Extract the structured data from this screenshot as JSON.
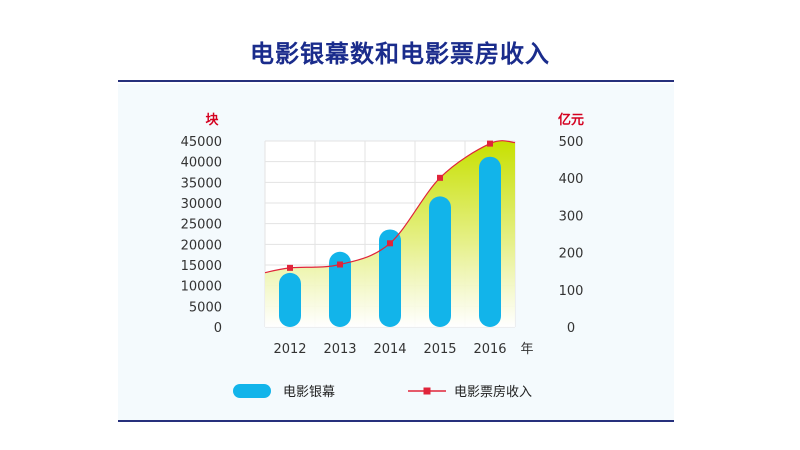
{
  "title": "电影银幕数和电影票房收入",
  "colors": {
    "title": "#1a2c8c",
    "bar": "#12b4ea",
    "line": "#e0243a",
    "area_top": "#c7e000",
    "unit_label": "#d4001f"
  },
  "chart_data": {
    "type": "bar",
    "title": "电影银幕数和电影票房收入",
    "categories": [
      "2012",
      "2013",
      "2014",
      "2015",
      "2016"
    ],
    "xlabel": "年",
    "left_axis": {
      "unit": "块",
      "ylim": [
        0,
        45000
      ],
      "ticks": [
        "0",
        "5000",
        "10000",
        "15000",
        "20000",
        "25000",
        "30000",
        "35000",
        "40000",
        "45000"
      ]
    },
    "right_axis": {
      "unit": "亿元",
      "ylim": [
        0,
        500
      ],
      "ticks": [
        "0",
        "100",
        "200",
        "300",
        "400",
        "500"
      ]
    },
    "series": [
      {
        "name": "电影银幕",
        "type": "bar",
        "axis": "left",
        "values": [
          13100,
          18200,
          23600,
          31600,
          41200
        ]
      },
      {
        "name": "电影票房收入",
        "type": "line+area",
        "axis": "right",
        "values": [
          159,
          168,
          225,
          401,
          493
        ]
      }
    ],
    "grid": true,
    "legend": "bottom"
  }
}
